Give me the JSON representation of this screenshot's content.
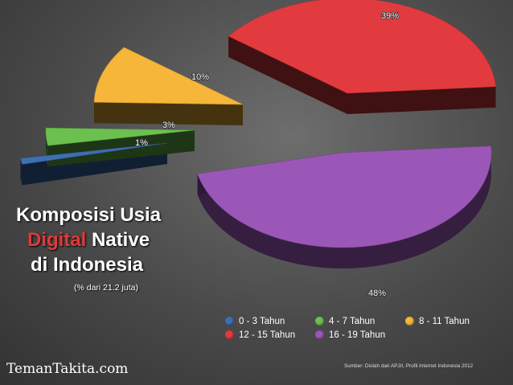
{
  "title": {
    "line1": "Komposisi Usia",
    "line2_accent": "Digital",
    "line2_rest": " Native",
    "line3": "di Indonesia"
  },
  "subtitle": "(% dari 21.2 juta)",
  "brand": "TemanTakita.com",
  "source": "Sumber:  Diolah dari  APJII, Profil Internet Indonesia 2012",
  "chart_data": {
    "type": "pie",
    "categories": [
      "0 - 3 Tahun",
      "4 - 7 Tahun",
      "8 - 11 Tahun",
      "12 - 15 Tahun",
      "16 - 19 Tahun"
    ],
    "values": [
      1,
      3,
      10,
      39,
      48
    ],
    "labels": [
      "1%",
      "3%",
      "10%",
      "39%",
      "48%"
    ],
    "colors": [
      "#3e6fb5",
      "#6cc04f",
      "#f5b63a",
      "#e23b3f",
      "#9b57b8"
    ],
    "legend_position": "bottom-right",
    "exploded": true,
    "3d": true
  }
}
